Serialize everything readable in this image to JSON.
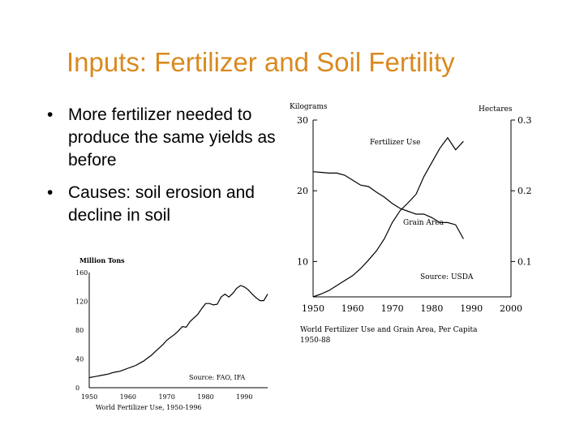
{
  "slide": {
    "title": "Inputs: Fertilizer and Soil Fertility",
    "bullets": [
      {
        "text": "More fertilizer needed to produce the same yields as before"
      },
      {
        "text": "Causes: soil erosion and decline in soil"
      }
    ],
    "bullet_glyph": "•"
  },
  "colors": {
    "title": "#d98a1f",
    "text": "#000000",
    "line": "#000000"
  },
  "chart_data": [
    {
      "type": "line",
      "ylabel": "Million Tons",
      "caption": "World Fertilizer Use, 1950-1996",
      "source": "Source: FAO, IFA",
      "xlim": [
        1950,
        1996
      ],
      "ylim": [
        0,
        160
      ],
      "y_ticks": [
        "160",
        "120",
        "80",
        "40",
        "0"
      ],
      "y_tick_values": [
        160,
        120,
        80,
        40,
        0
      ],
      "x_ticks": [
        "1950",
        "1960",
        "1970",
        "1980",
        "1990"
      ],
      "x_tick_values": [
        1950,
        1960,
        1970,
        1980,
        1990
      ],
      "series": [
        {
          "x": [
            1950,
            1951,
            1952,
            1953,
            1954,
            1955,
            1956,
            1957,
            1958,
            1959,
            1960,
            1961,
            1962,
            1963,
            1964,
            1965,
            1966,
            1967,
            1968,
            1969,
            1970,
            1971,
            1972,
            1973,
            1974,
            1975,
            1976,
            1977,
            1978,
            1979,
            1980,
            1981,
            1982,
            1983,
            1984,
            1985,
            1986,
            1987,
            1988,
            1989,
            1990,
            1991,
            1992,
            1993,
            1994,
            1995,
            1996
          ],
          "y": [
            14,
            15,
            16,
            17,
            18,
            19,
            21,
            22,
            23,
            25,
            27,
            29,
            31,
            34,
            37,
            41,
            45,
            50,
            55,
            60,
            66,
            70,
            74,
            79,
            85,
            84,
            92,
            97,
            102,
            110,
            117,
            117,
            115,
            116,
            126,
            130,
            126,
            131,
            138,
            142,
            140,
            136,
            130,
            125,
            121,
            121,
            130
          ]
        }
      ]
    },
    {
      "type": "line",
      "caption": "World Fertilizer Use and Grain Area, Per Capita 1950-88",
      "source": "Source: USDA",
      "xlim": [
        1950,
        2000
      ],
      "left_axis": {
        "label": "Kilograms",
        "ylim": [
          5,
          30
        ],
        "ticks": [
          "30",
          "20",
          "10"
        ],
        "tick_values": [
          30,
          20,
          10
        ]
      },
      "right_axis": {
        "label": "Hectares",
        "ylim": [
          0.05,
          0.3
        ],
        "ticks": [
          "0.3",
          "0.2",
          "0.1"
        ],
        "tick_values": [
          0.3,
          0.2,
          0.1
        ]
      },
      "x_ticks": [
        "1950",
        "1960",
        "1970",
        "1980",
        "1990",
        "2000"
      ],
      "x_tick_values": [
        1950,
        1960,
        1970,
        1980,
        1990,
        2000
      ],
      "series": [
        {
          "name": "Fertilizer Use",
          "axis": "left",
          "x": [
            1950,
            1952,
            1954,
            1956,
            1958,
            1960,
            1962,
            1964,
            1966,
            1968,
            1970,
            1972,
            1974,
            1976,
            1978,
            1980,
            1982,
            1984,
            1986,
            1988
          ],
          "y": [
            5,
            5.4,
            5.9,
            6.6,
            7.3,
            8,
            9,
            10.2,
            11.5,
            13.2,
            15.5,
            17.2,
            18.3,
            19.5,
            22,
            24,
            26,
            27.5,
            25.8,
            27
          ]
        },
        {
          "name": "Grain Area",
          "axis": "left",
          "x": [
            1950,
            1952,
            1954,
            1956,
            1958,
            1960,
            1962,
            1964,
            1966,
            1968,
            1970,
            1972,
            1974,
            1976,
            1978,
            1980,
            1982,
            1984,
            1986,
            1988
          ],
          "y": [
            22.7,
            22.6,
            22.5,
            22.5,
            22.2,
            21.5,
            20.8,
            20.6,
            19.8,
            19.1,
            18.2,
            17.5,
            17.1,
            16.7,
            16.7,
            16.2,
            15.5,
            15.5,
            15.2,
            13.2
          ]
        }
      ]
    }
  ]
}
